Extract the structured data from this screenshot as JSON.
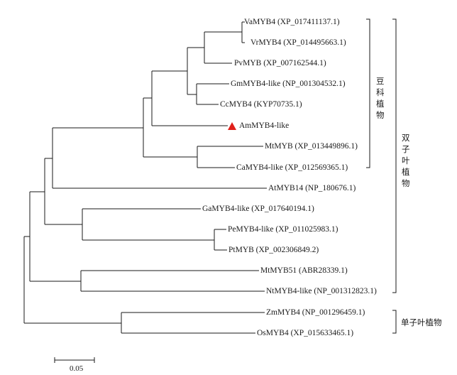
{
  "tree": {
    "leaves": [
      {
        "id": "vamyb4",
        "label": "VaMYB4 (XP_017411137.1)"
      },
      {
        "id": "vrmyb4",
        "label": "VrMYB4 (XP_014495663.1)"
      },
      {
        "id": "pvmyb",
        "label": "PvMYB (XP_007162544.1)"
      },
      {
        "id": "gmmyb4",
        "label": "GmMYB4-like (NP_001304532.1)"
      },
      {
        "id": "ccmyb4",
        "label": "CcMYB4 (KYP70735.1)"
      },
      {
        "id": "ammyb4",
        "label": "AmMYB4-like",
        "highlight": true
      },
      {
        "id": "mtmyb",
        "label": "MtMYB (XP_013449896.1)"
      },
      {
        "id": "camyb4",
        "label": "CaMYB4-like (XP_012569365.1)"
      },
      {
        "id": "atmyb14",
        "label": "AtMYB14 (NP_180676.1)"
      },
      {
        "id": "gamyb4",
        "label": "GaMYB4-like (XP_017640194.1)"
      },
      {
        "id": "pemyb4",
        "label": "PeMYB4-like (XP_011025983.1)"
      },
      {
        "id": "ptmyb",
        "label": "PtMYB (XP_002306849.2)"
      },
      {
        "id": "mtmyb51",
        "label": "MtMYB51 (ABR28339.1)"
      },
      {
        "id": "ntmyb4",
        "label": "NtMYB4-like (NP_001312823.1)"
      },
      {
        "id": "zmmyb4",
        "label": "ZmMYB4 (NP_001296459.1)"
      },
      {
        "id": "osmyb4",
        "label": "OsMYB4 (XP_015633465.1)"
      }
    ],
    "groups": [
      {
        "id": "legumes",
        "label": "豆科植物",
        "from": "vamyb4",
        "to": "camyb4"
      },
      {
        "id": "dicots",
        "label": "双子叶植物",
        "from": "vamyb4",
        "to": "ntmyb4"
      },
      {
        "id": "monocots",
        "label": "单子叶植物",
        "from": "zmmyb4",
        "to": "osmyb4"
      }
    ],
    "scale_bar": {
      "value": 0.05,
      "label": "0.05"
    },
    "highlight_color": "#e0201b",
    "line_color": "#1a1a1a"
  }
}
